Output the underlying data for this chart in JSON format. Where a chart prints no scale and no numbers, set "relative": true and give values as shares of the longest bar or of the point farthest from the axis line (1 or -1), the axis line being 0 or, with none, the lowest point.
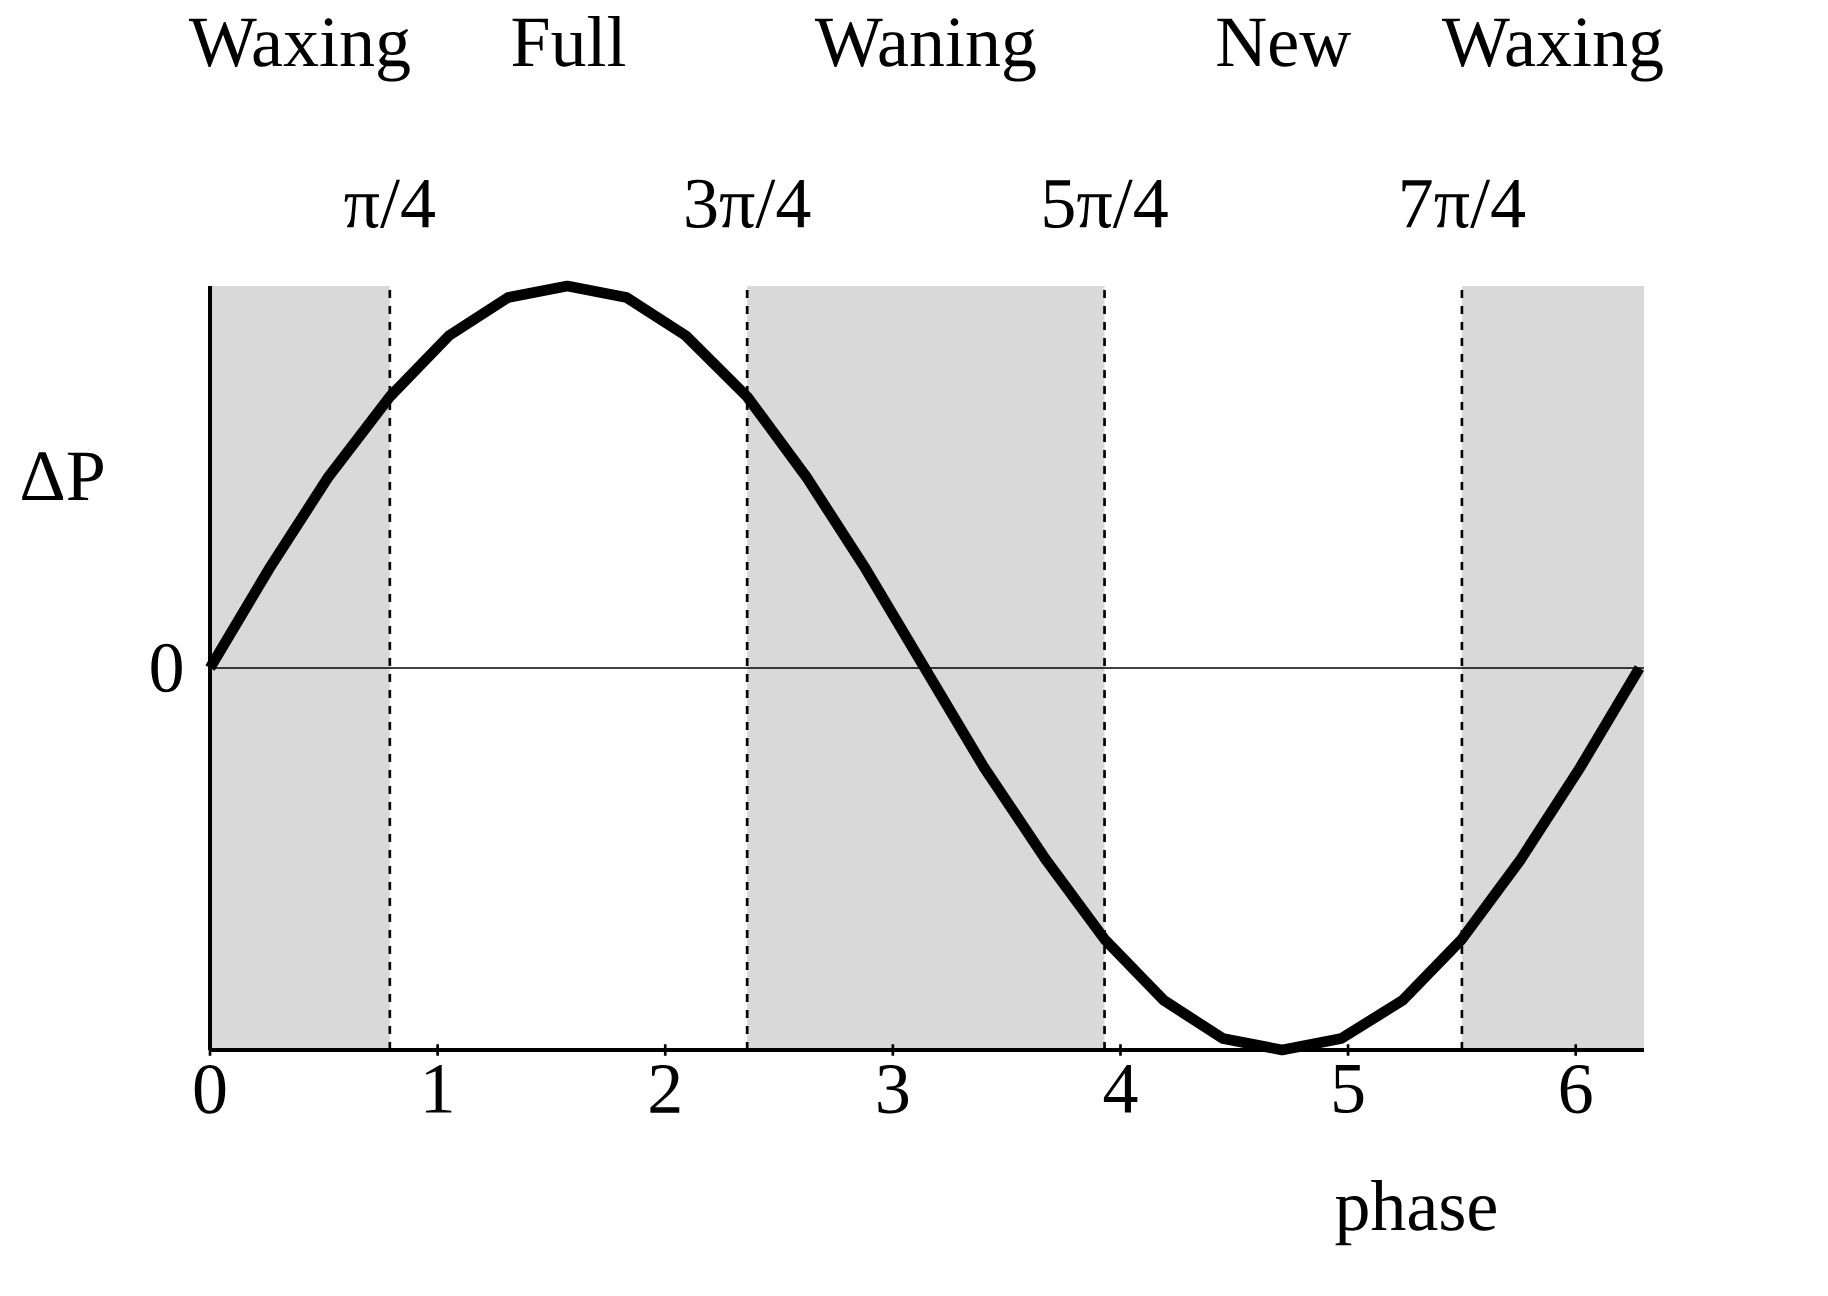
{
  "chart_data": {
    "type": "line",
    "relative": true,
    "xlabel": "phase",
    "ylabel": "ΔP",
    "x": [
      0,
      0.26,
      0.52,
      0.79,
      1.05,
      1.31,
      1.57,
      1.83,
      2.09,
      2.36,
      2.62,
      2.88,
      3.14,
      3.4,
      3.67,
      3.93,
      4.19,
      4.45,
      4.71,
      4.97,
      5.24,
      5.5,
      5.76,
      6.02,
      6.28
    ],
    "values": [
      0,
      0.26,
      0.5,
      0.71,
      0.87,
      0.97,
      1,
      0.97,
      0.87,
      0.71,
      0.5,
      0.26,
      0,
      -0.26,
      -0.5,
      -0.71,
      -0.87,
      -0.97,
      -1,
      -0.97,
      -0.87,
      -0.71,
      -0.5,
      -0.26,
      0
    ],
    "color": "#000000",
    "xlim": [
      0,
      6.3
    ],
    "xticks": [
      0,
      1,
      2,
      3,
      4,
      5,
      6
    ],
    "bands": [
      {
        "axis": "x",
        "from": 0,
        "to": 0.79,
        "label": "Waxing",
        "color": "#d9d9d9"
      },
      {
        "axis": "x",
        "from": 2.36,
        "to": 3.93,
        "label": "Waning",
        "color": "#d9d9d9"
      },
      {
        "axis": "x",
        "from": 5.5,
        "to": 6.3,
        "label": "Waxing",
        "color": "#d9d9d9"
      }
    ],
    "annotations": [
      "Full",
      "New"
    ],
    "ref_lines": [
      {
        "axis": "x",
        "value": 0.79,
        "label": "π/4",
        "line_style": "dashed"
      },
      {
        "axis": "x",
        "value": 2.36,
        "label": "3π/4",
        "line_style": "dashed"
      },
      {
        "axis": "x",
        "value": 3.93,
        "label": "5π/4",
        "line_style": "dashed"
      },
      {
        "axis": "x",
        "value": 5.5,
        "label": "7π/4",
        "line_style": "dashed"
      },
      {
        "axis": "y",
        "value": 0,
        "label": "0",
        "line_style": "solid"
      }
    ]
  }
}
